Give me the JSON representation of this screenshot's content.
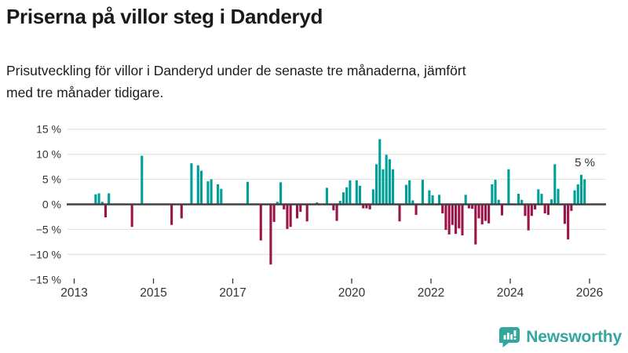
{
  "header": {
    "title": "Priserna på villor steg i Danderyd",
    "subtitle": "Prisutveckling för villor i Danderyd under de senaste tre månaderna, jämfört med tre månader tidigare."
  },
  "footer": {
    "brand": "Newsworthy"
  },
  "chart_data": {
    "type": "bar",
    "title": "Priserna på villor steg i Danderyd",
    "subtitle": "Prisutveckling för villor i Danderyd under de senaste tre månaderna, jämfört med tre månader tidigare.",
    "unit": "%",
    "frequency": "monthly",
    "xlabel": "",
    "ylabel": "",
    "ylim": [
      -15,
      15
    ],
    "grid": "horizontal",
    "legend": "none",
    "annotation": {
      "text": "5 %",
      "attached_to": "2025-11"
    },
    "y_ticks": [
      {
        "value": 15,
        "label": "15 %"
      },
      {
        "value": 10,
        "label": "10 %"
      },
      {
        "value": 5,
        "label": "5 %"
      },
      {
        "value": 0,
        "label": "0 %"
      },
      {
        "value": -5,
        "label": "−5 %"
      },
      {
        "value": -10,
        "label": "−10 %"
      },
      {
        "value": -15,
        "label": "−15 %"
      }
    ],
    "y_gridlines": [
      15,
      10,
      5,
      -5,
      -10
    ],
    "x_ticks": [
      2013,
      2015,
      2017,
      2020,
      2022,
      2024,
      2026
    ],
    "colors": {
      "positive": "#00a099",
      "negative": "#9b1348",
      "axis": "#333333",
      "zero_line": "#404040",
      "gridline": "#e3e3e3",
      "brand": "#34a6a0"
    },
    "points": [
      {
        "m": "2013-07",
        "v": 2.0
      },
      {
        "m": "2013-08",
        "v": 2.2
      },
      {
        "m": "2013-09",
        "v": 0.5
      },
      {
        "m": "2013-10",
        "v": -2.6
      },
      {
        "m": "2013-11",
        "v": 2.2
      },
      {
        "m": "2014-06",
        "v": -4.5
      },
      {
        "m": "2014-09",
        "v": 9.7
      },
      {
        "m": "2015-06",
        "v": -4.1
      },
      {
        "m": "2015-09",
        "v": -2.8
      },
      {
        "m": "2015-12",
        "v": 8.2
      },
      {
        "m": "2016-02",
        "v": 7.8
      },
      {
        "m": "2016-03",
        "v": 6.7
      },
      {
        "m": "2016-05",
        "v": 4.6
      },
      {
        "m": "2016-06",
        "v": 5.0
      },
      {
        "m": "2016-08",
        "v": 4.0
      },
      {
        "m": "2016-09",
        "v": 3.1
      },
      {
        "m": "2017-05",
        "v": 4.5
      },
      {
        "m": "2017-09",
        "v": -7.2
      },
      {
        "m": "2017-12",
        "v": -12.0
      },
      {
        "m": "2018-01",
        "v": -3.5
      },
      {
        "m": "2018-02",
        "v": 0.5
      },
      {
        "m": "2018-03",
        "v": 4.4
      },
      {
        "m": "2018-04",
        "v": -1.0
      },
      {
        "m": "2018-05",
        "v": -4.9
      },
      {
        "m": "2018-06",
        "v": -4.5
      },
      {
        "m": "2018-08",
        "v": -2.8
      },
      {
        "m": "2018-09",
        "v": -1.5
      },
      {
        "m": "2018-11",
        "v": -3.4
      },
      {
        "m": "2019-02",
        "v": 0.4
      },
      {
        "m": "2019-05",
        "v": 3.3
      },
      {
        "m": "2019-07",
        "v": -1.2
      },
      {
        "m": "2019-08",
        "v": -3.3
      },
      {
        "m": "2019-09",
        "v": 0.7
      },
      {
        "m": "2019-10",
        "v": 2.4
      },
      {
        "m": "2019-11",
        "v": 3.4
      },
      {
        "m": "2019-12",
        "v": 4.8
      },
      {
        "m": "2020-02",
        "v": 4.8
      },
      {
        "m": "2020-03",
        "v": 3.7
      },
      {
        "m": "2020-04",
        "v": -0.8
      },
      {
        "m": "2020-05",
        "v": -0.8
      },
      {
        "m": "2020-06",
        "v": -1.0
      },
      {
        "m": "2020-07",
        "v": 3.0
      },
      {
        "m": "2020-08",
        "v": 8.0
      },
      {
        "m": "2020-09",
        "v": 13.0
      },
      {
        "m": "2020-10",
        "v": 7.0
      },
      {
        "m": "2020-11",
        "v": 9.9
      },
      {
        "m": "2020-12",
        "v": 9.0
      },
      {
        "m": "2021-01",
        "v": 7.0
      },
      {
        "m": "2021-03",
        "v": -3.4
      },
      {
        "m": "2021-05",
        "v": 3.9
      },
      {
        "m": "2021-06",
        "v": 4.8
      },
      {
        "m": "2021-07",
        "v": 0.8
      },
      {
        "m": "2021-08",
        "v": -2.1
      },
      {
        "m": "2021-10",
        "v": 4.9
      },
      {
        "m": "2021-12",
        "v": 2.8
      },
      {
        "m": "2022-01",
        "v": 1.8
      },
      {
        "m": "2022-03",
        "v": 1.9
      },
      {
        "m": "2022-04",
        "v": -1.8
      },
      {
        "m": "2022-05",
        "v": -5.1
      },
      {
        "m": "2022-06",
        "v": -6.0
      },
      {
        "m": "2022-07",
        "v": -4.1
      },
      {
        "m": "2022-08",
        "v": -5.9
      },
      {
        "m": "2022-09",
        "v": -4.8
      },
      {
        "m": "2022-10",
        "v": -6.2
      },
      {
        "m": "2022-11",
        "v": 1.9
      },
      {
        "m": "2022-12",
        "v": -0.8
      },
      {
        "m": "2023-01",
        "v": -0.9
      },
      {
        "m": "2023-02",
        "v": -8.0
      },
      {
        "m": "2023-03",
        "v": -2.8
      },
      {
        "m": "2023-04",
        "v": -4.0
      },
      {
        "m": "2023-05",
        "v": -3.3
      },
      {
        "m": "2023-06",
        "v": -3.8
      },
      {
        "m": "2023-07",
        "v": 4.0
      },
      {
        "m": "2023-08",
        "v": 4.9
      },
      {
        "m": "2023-09",
        "v": 0.9
      },
      {
        "m": "2023-10",
        "v": -2.2
      },
      {
        "m": "2023-12",
        "v": 7.0
      },
      {
        "m": "2024-03",
        "v": 2.1
      },
      {
        "m": "2024-04",
        "v": 0.9
      },
      {
        "m": "2024-05",
        "v": -2.3
      },
      {
        "m": "2024-06",
        "v": -5.2
      },
      {
        "m": "2024-07",
        "v": -2.3
      },
      {
        "m": "2024-08",
        "v": -1.0
      },
      {
        "m": "2024-09",
        "v": 3.0
      },
      {
        "m": "2024-10",
        "v": 2.1
      },
      {
        "m": "2024-11",
        "v": -1.8
      },
      {
        "m": "2024-12",
        "v": -2.1
      },
      {
        "m": "2025-01",
        "v": 1.0
      },
      {
        "m": "2025-02",
        "v": 8.0
      },
      {
        "m": "2025-03",
        "v": 3.1
      },
      {
        "m": "2025-05",
        "v": -3.9
      },
      {
        "m": "2025-06",
        "v": -7.0
      },
      {
        "m": "2025-07",
        "v": -1.3
      },
      {
        "m": "2025-08",
        "v": 2.8
      },
      {
        "m": "2025-09",
        "v": 4.0
      },
      {
        "m": "2025-10",
        "v": 5.9
      },
      {
        "m": "2025-11",
        "v": 5.0
      }
    ]
  }
}
